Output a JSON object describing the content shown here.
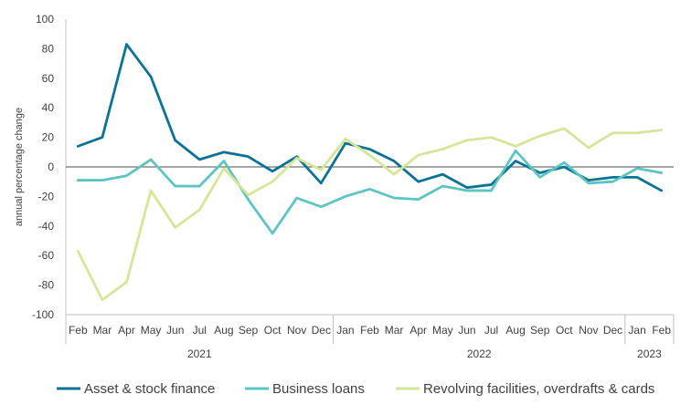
{
  "chart_data": {
    "type": "line",
    "ylabel": "annual percentage change",
    "ylim": [
      -100,
      100
    ],
    "yticks": [
      100,
      80,
      60,
      40,
      20,
      0,
      -20,
      -40,
      -60,
      -80,
      -100
    ],
    "categories": [
      "Feb",
      "Mar",
      "Apr",
      "May",
      "Jun",
      "Jul",
      "Aug",
      "Sep",
      "Oct",
      "Nov",
      "Dec",
      "Jan",
      "Feb",
      "Mar",
      "Apr",
      "May",
      "Jun",
      "Jul",
      "Aug",
      "Sep",
      "Oct",
      "Nov",
      "Dec",
      "Jan",
      "Feb"
    ],
    "year_groups": [
      {
        "label": "2021",
        "count": 11
      },
      {
        "label": "2022",
        "count": 12
      },
      {
        "label": "2023",
        "count": 2
      }
    ],
    "legend_position": "bottom",
    "grid": false,
    "series": [
      {
        "name": "Asset & stock finance",
        "color": "#0a7394",
        "values": [
          14,
          20,
          83,
          61,
          18,
          5,
          10,
          7,
          -3,
          7,
          -11,
          16,
          12,
          4,
          -10,
          -5,
          -14,
          -12,
          4,
          -4,
          0,
          -9,
          -7,
          -7,
          -16
        ]
      },
      {
        "name": "Business loans",
        "color": "#5ec4c1",
        "values": [
          -9,
          -9,
          -6,
          5,
          -13,
          -13,
          4,
          -22,
          -45,
          -21,
          -27,
          -20,
          -15,
          -21,
          -22,
          -13,
          -16,
          -16,
          11,
          -7,
          3,
          -11,
          -10,
          -1,
          -4
        ]
      },
      {
        "name": "Revolving facilities, overdrafts & cards",
        "color": "#d5e59a",
        "values": [
          -57,
          -90,
          -78,
          -16,
          -41,
          -29,
          -1,
          -19,
          -10,
          6,
          -2,
          19,
          8,
          -5,
          8,
          12,
          18,
          20,
          14,
          21,
          26,
          13,
          23,
          23,
          25
        ]
      }
    ]
  }
}
